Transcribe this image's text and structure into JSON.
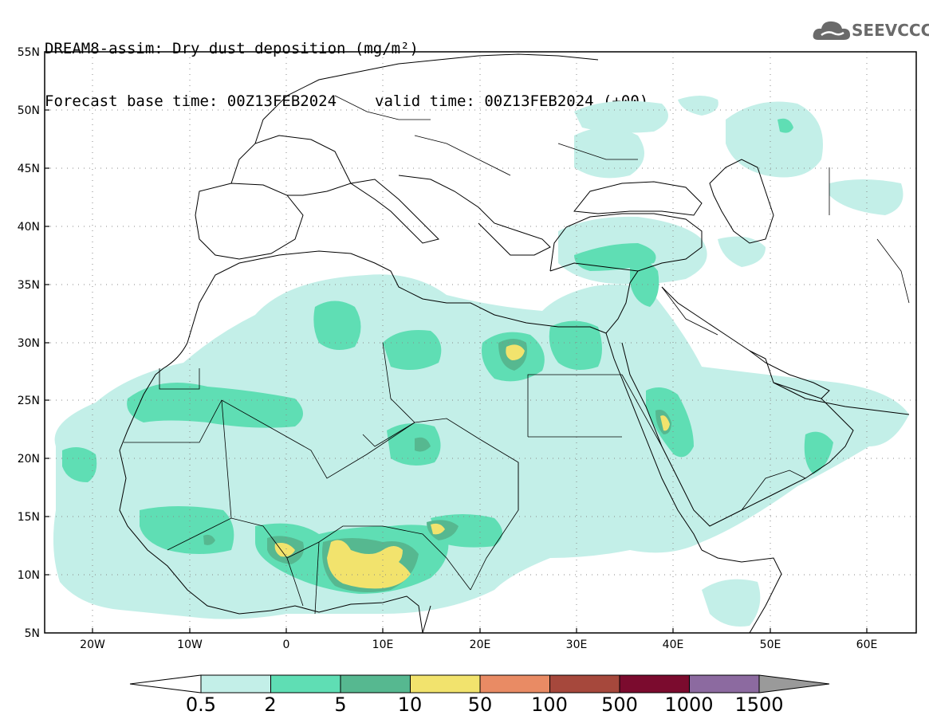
{
  "header": {
    "title": "DREAM8-assim: Dry dust deposition (mg/m²)",
    "base_time": "Forecast base time: 00Z13FEB2024",
    "valid_time": "valid time: 00Z13FEB2024 (+00)"
  },
  "logo": {
    "text": "SEEVCCC",
    "icon": "cloud-icon"
  },
  "map": {
    "lat_labels": [
      "55N",
      "50N",
      "45N",
      "40N",
      "35N",
      "30N",
      "25N",
      "20N",
      "15N",
      "10N",
      "5N"
    ],
    "lon_labels": [
      "20W",
      "10W",
      "0",
      "10E",
      "20E",
      "30E",
      "40E",
      "50E",
      "60E"
    ],
    "lat_range": [
      5,
      55
    ],
    "lon_range": [
      -25,
      65
    ],
    "grid": true
  },
  "colorbar": {
    "labels": [
      "0.5",
      "2",
      "5",
      "10",
      "50",
      "100",
      "500",
      "1000",
      "1500"
    ],
    "colors": [
      "#c3efe8",
      "#5fdeb4",
      "#56b890",
      "#f2e36d",
      "#e98b64",
      "#a6483c",
      "#7b0b2e",
      "#8c6aa0",
      "#9a9a9a"
    ],
    "under_color": "#ffffff"
  },
  "palette": {
    "level1": "#c3efe8",
    "level2": "#5fdeb4",
    "level3": "#56b890",
    "level4": "#f2e36d"
  }
}
